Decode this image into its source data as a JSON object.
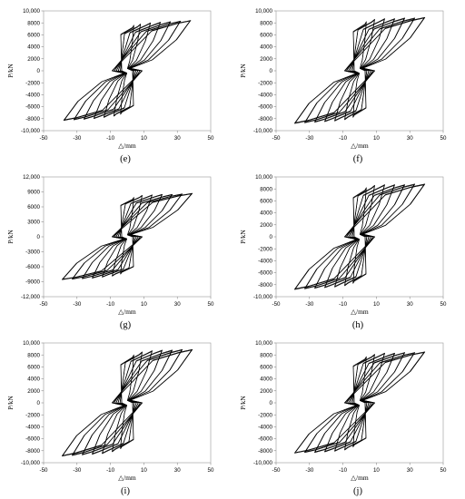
{
  "page": {
    "background": "#ffffff",
    "line_color": "#000000"
  },
  "chart_data": [
    {
      "type": "line",
      "panel_label": "(e)",
      "xlabel": "△/mm",
      "ylabel": "P/kN",
      "xlim": [
        -50,
        50
      ],
      "ylim": [
        -10000,
        10000
      ],
      "xticks": [
        -50,
        -30,
        -10,
        10,
        30,
        50
      ],
      "yticks": [
        -10000,
        -8000,
        -6000,
        -4000,
        -2000,
        0,
        2000,
        4000,
        6000,
        8000,
        10000
      ],
      "ytick_labels": [
        "-10,000",
        "-8000",
        "-6000",
        "-4000",
        "-2000",
        "0",
        "2000",
        "4000",
        "6000",
        "8000",
        "10,000"
      ],
      "grid": false,
      "series": [
        {
          "amp": 4,
          "peak": 7600,
          "neg_peak": -7300
        },
        {
          "amp": 8,
          "peak": 7800,
          "neg_peak": -7600
        },
        {
          "amp": 14,
          "peak": 8000,
          "neg_peak": -7800
        },
        {
          "amp": 20,
          "peak": 8100,
          "neg_peak": -8000
        },
        {
          "amp": 26,
          "peak": 8200,
          "neg_peak": -8100
        },
        {
          "amp": 32,
          "peak": 8300,
          "neg_peak": -8200
        },
        {
          "amp": 38,
          "peak": 8400,
          "neg_peak": -8300
        }
      ]
    },
    {
      "type": "line",
      "panel_label": "(f)",
      "xlabel": "△/mm",
      "ylabel": "P/kN",
      "xlim": [
        -50,
        50
      ],
      "ylim": [
        -10000,
        10000
      ],
      "xticks": [
        -50,
        -30,
        -10,
        10,
        30,
        50
      ],
      "yticks": [
        -10000,
        -8000,
        -6000,
        -4000,
        -2000,
        0,
        2000,
        4000,
        6000,
        8000,
        10000
      ],
      "ytick_labels": [
        "-10,000",
        "-8000",
        "-6000",
        "-4000",
        "-2000",
        "0",
        "2000",
        "4000",
        "6000",
        "8000",
        "10,000"
      ],
      "grid": false,
      "series": [
        {
          "amp": 4,
          "peak": 8200,
          "neg_peak": -7800
        },
        {
          "amp": 9,
          "peak": 8600,
          "neg_peak": -8200
        },
        {
          "amp": 15,
          "peak": 8700,
          "neg_peak": -8400
        },
        {
          "amp": 21,
          "peak": 8700,
          "neg_peak": -8500
        },
        {
          "amp": 27,
          "peak": 8800,
          "neg_peak": -8600
        },
        {
          "amp": 33,
          "peak": 8800,
          "neg_peak": -8700
        },
        {
          "amp": 39,
          "peak": 8900,
          "neg_peak": -8800
        }
      ]
    },
    {
      "type": "line",
      "panel_label": "(g)",
      "xlabel": "△/mm",
      "ylabel": "P/kN",
      "xlim": [
        -50,
        50
      ],
      "ylim": [
        -12000,
        12000
      ],
      "xticks": [
        -50,
        -30,
        -10,
        10,
        30,
        50
      ],
      "yticks": [
        -12000,
        -9000,
        -6000,
        -3000,
        0,
        3000,
        6000,
        9000,
        12000
      ],
      "ytick_labels": [
        "-12,000",
        "-9000",
        "-6000",
        "-3000",
        "0",
        "3000",
        "6000",
        "9000",
        "12,000"
      ],
      "grid": false,
      "series": [
        {
          "amp": 4,
          "peak": 7900,
          "neg_peak": -7500
        },
        {
          "amp": 9,
          "peak": 8300,
          "neg_peak": -7900
        },
        {
          "amp": 15,
          "peak": 8400,
          "neg_peak": -8100
        },
        {
          "amp": 21,
          "peak": 8500,
          "neg_peak": -8300
        },
        {
          "amp": 27,
          "peak": 8500,
          "neg_peak": -8400
        },
        {
          "amp": 33,
          "peak": 8600,
          "neg_peak": -8500
        },
        {
          "amp": 39,
          "peak": 8700,
          "neg_peak": -8600
        }
      ]
    },
    {
      "type": "line",
      "panel_label": "(h)",
      "xlabel": "△/mm",
      "ylabel": "P/kN",
      "xlim": [
        -50,
        50
      ],
      "ylim": [
        -10000,
        10000
      ],
      "xticks": [
        -50,
        -30,
        -10,
        10,
        30,
        50
      ],
      "yticks": [
        -10000,
        -8000,
        -6000,
        -4000,
        -2000,
        0,
        2000,
        4000,
        6000,
        8000,
        10000
      ],
      "ytick_labels": [
        "-10,000",
        "-8000",
        "-6000",
        "-4000",
        "-2000",
        "0",
        "2000",
        "4000",
        "6000",
        "8000",
        "10,000"
      ],
      "grid": false,
      "series": [
        {
          "amp": 4,
          "peak": 8200,
          "neg_peak": -7800
        },
        {
          "amp": 9,
          "peak": 8600,
          "neg_peak": -8200
        },
        {
          "amp": 15,
          "peak": 8700,
          "neg_peak": -8400
        },
        {
          "amp": 21,
          "peak": 8700,
          "neg_peak": -8500
        },
        {
          "amp": 27,
          "peak": 8700,
          "neg_peak": -8600
        },
        {
          "amp": 33,
          "peak": 8800,
          "neg_peak": -8700
        },
        {
          "amp": 39,
          "peak": 8800,
          "neg_peak": -8800
        }
      ]
    },
    {
      "type": "line",
      "panel_label": "(i)",
      "xlabel": "△/mm",
      "ylabel": "P/kN",
      "xlim": [
        -50,
        50
      ],
      "ylim": [
        -10000,
        10000
      ],
      "xticks": [
        -50,
        -30,
        -10,
        10,
        30,
        50
      ],
      "yticks": [
        -10000,
        -8000,
        -6000,
        -4000,
        -2000,
        0,
        2000,
        4000,
        6000,
        8000,
        10000
      ],
      "ytick_labels": [
        "-10,000",
        "-8000",
        "-6000",
        "-4000",
        "-2000",
        "0",
        "2000",
        "4000",
        "6000",
        "8000",
        "10,000"
      ],
      "grid": false,
      "series": [
        {
          "amp": 4,
          "peak": 8000,
          "neg_peak": -7700
        },
        {
          "amp": 9,
          "peak": 8500,
          "neg_peak": -8200
        },
        {
          "amp": 15,
          "peak": 8700,
          "neg_peak": -8500
        },
        {
          "amp": 21,
          "peak": 8800,
          "neg_peak": -8600
        },
        {
          "amp": 27,
          "peak": 8800,
          "neg_peak": -8700
        },
        {
          "amp": 33,
          "peak": 8900,
          "neg_peak": -8800
        },
        {
          "amp": 39,
          "peak": 8900,
          "neg_peak": -8900
        }
      ]
    },
    {
      "type": "line",
      "panel_label": "(j)",
      "xlabel": "△/mm",
      "ylabel": "P/kN",
      "xlim": [
        -50,
        50
      ],
      "ylim": [
        -10000,
        10000
      ],
      "xticks": [
        -50,
        -30,
        -10,
        10,
        30,
        50
      ],
      "yticks": [
        -10000,
        -8000,
        -6000,
        -4000,
        -2000,
        0,
        2000,
        4000,
        6000,
        8000,
        10000
      ],
      "ytick_labels": [
        "-10,000",
        "-8000",
        "-6000",
        "-4000",
        "-2000",
        "0",
        "2000",
        "4000",
        "6000",
        "8000",
        "10,000"
      ],
      "grid": false,
      "series": [
        {
          "amp": 4,
          "peak": 7700,
          "neg_peak": -7400
        },
        {
          "amp": 9,
          "peak": 8100,
          "neg_peak": -7900
        },
        {
          "amp": 15,
          "peak": 8300,
          "neg_peak": -8100
        },
        {
          "amp": 21,
          "peak": 8300,
          "neg_peak": -8200
        },
        {
          "amp": 27,
          "peak": 8400,
          "neg_peak": -8300
        },
        {
          "amp": 33,
          "peak": 8400,
          "neg_peak": -8300
        },
        {
          "amp": 39,
          "peak": 8500,
          "neg_peak": -8400
        }
      ]
    }
  ]
}
